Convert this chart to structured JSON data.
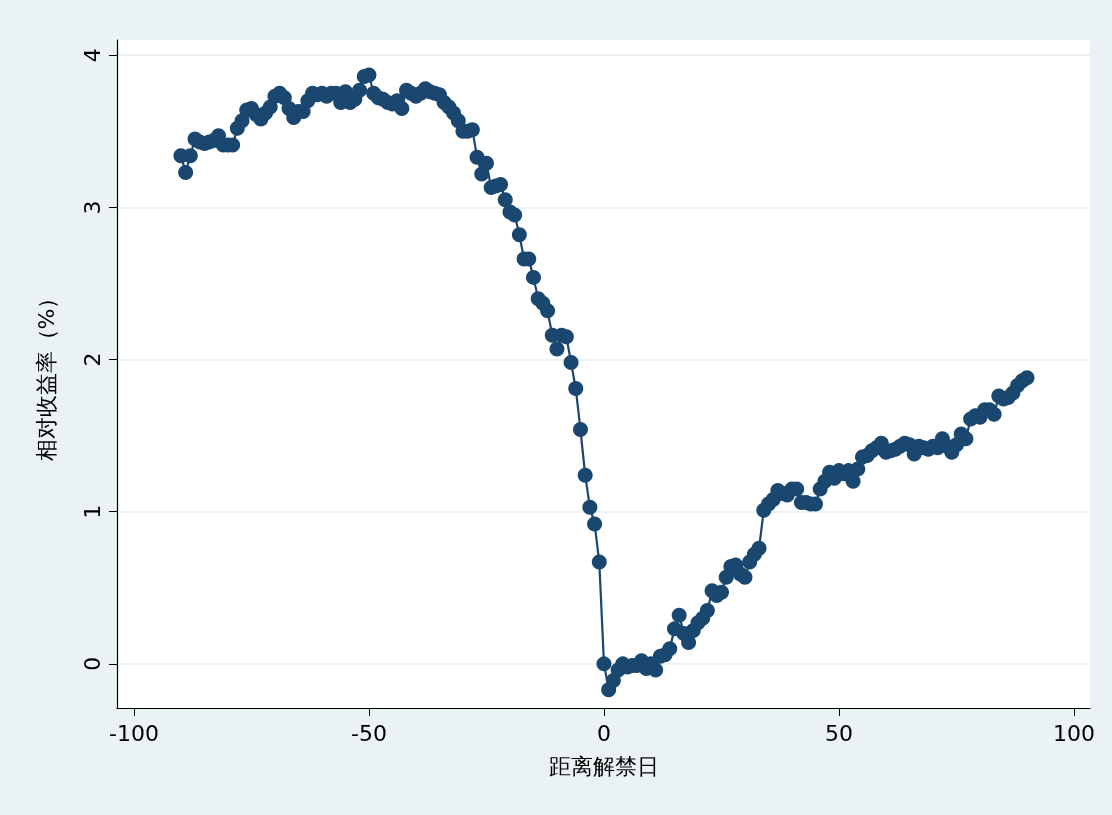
{
  "chart_data": {
    "type": "line",
    "xlabel": "距离解禁日",
    "ylabel": "相对收益率（%）",
    "marker": "circle",
    "grid": "y",
    "xlim": [
      -103.6,
      103.4
    ],
    "xticks": [
      -100,
      -50,
      0,
      50,
      100
    ],
    "ylim": [
      -0.29,
      4.1
    ],
    "yticks": [
      0,
      1,
      2,
      3,
      4
    ],
    "x": [
      -90,
      -89,
      -88,
      -87,
      -86,
      -85,
      -84,
      -83,
      -82,
      -81,
      -80,
      -79,
      -78,
      -77,
      -76,
      -75,
      -74,
      -73,
      -72,
      -71,
      -70,
      -69,
      -68,
      -67,
      -66,
      -65,
      -64,
      -63,
      -62,
      -61,
      -60,
      -59,
      -58,
      -57,
      -56,
      -55,
      -54,
      -53,
      -52,
      -51,
      -50,
      -49,
      -48,
      -47,
      -46,
      -45,
      -44,
      -43,
      -42,
      -41,
      -40,
      -39,
      -38,
      -37,
      -36,
      -35,
      -34,
      -33,
      -32,
      -31,
      -30,
      -29,
      -28,
      -27,
      -26,
      -25,
      -24,
      -23,
      -22,
      -21,
      -20,
      -19,
      -18,
      -17,
      -16,
      -15,
      -14,
      -13,
      -12,
      -11,
      -10,
      -9,
      -8,
      -7,
      -6,
      -5,
      -4,
      -3,
      -2,
      -1,
      0,
      1,
      2,
      3,
      4,
      5,
      6,
      7,
      8,
      9,
      10,
      11,
      12,
      13,
      14,
      15,
      16,
      17,
      18,
      19,
      20,
      21,
      22,
      23,
      24,
      25,
      26,
      27,
      28,
      29,
      30,
      31,
      32,
      33,
      34,
      35,
      36,
      37,
      38,
      39,
      40,
      41,
      42,
      43,
      44,
      45,
      46,
      47,
      48,
      49,
      50,
      51,
      52,
      53,
      54,
      55,
      56,
      57,
      58,
      59,
      60,
      61,
      62,
      63,
      64,
      65,
      66,
      67,
      68,
      69,
      70,
      71,
      72,
      73,
      74,
      75,
      76,
      77,
      78,
      79,
      80,
      81,
      82,
      83,
      84,
      85,
      86,
      87,
      88,
      89,
      90
    ],
    "series": [
      {
        "color": "#1a476f",
        "values": [
          3.34,
          3.23,
          3.34,
          3.45,
          3.43,
          3.42,
          3.43,
          3.44,
          3.47,
          3.41,
          3.41,
          3.41,
          3.52,
          3.57,
          3.64,
          3.65,
          3.61,
          3.58,
          3.62,
          3.66,
          3.73,
          3.75,
          3.72,
          3.65,
          3.59,
          3.63,
          3.63,
          3.7,
          3.75,
          3.74,
          3.75,
          3.73,
          3.75,
          3.75,
          3.69,
          3.76,
          3.69,
          3.71,
          3.77,
          3.86,
          3.87,
          3.75,
          3.72,
          3.71,
          3.69,
          3.68,
          3.7,
          3.65,
          3.77,
          3.75,
          3.73,
          3.75,
          3.78,
          3.76,
          3.75,
          3.74,
          3.69,
          3.66,
          3.62,
          3.57,
          3.5,
          3.5,
          3.51,
          3.33,
          3.22,
          3.29,
          3.13,
          3.14,
          3.15,
          3.05,
          2.97,
          2.95,
          2.82,
          2.66,
          2.66,
          2.54,
          2.4,
          2.37,
          2.32,
          2.16,
          2.07,
          2.16,
          2.15,
          1.98,
          1.81,
          1.54,
          1.24,
          1.03,
          0.92,
          0.67,
          0.0,
          -0.17,
          -0.11,
          -0.04,
          0.0,
          -0.02,
          -0.01,
          -0.01,
          0.02,
          -0.03,
          0.0,
          -0.04,
          0.05,
          0.06,
          0.1,
          0.23,
          0.32,
          0.2,
          0.14,
          0.22,
          0.27,
          0.3,
          0.35,
          0.48,
          0.45,
          0.47,
          0.57,
          0.64,
          0.65,
          0.59,
          0.57,
          0.67,
          0.72,
          0.76,
          1.01,
          1.05,
          1.08,
          1.14,
          1.12,
          1.11,
          1.15,
          1.15,
          1.06,
          1.06,
          1.05,
          1.05,
          1.15,
          1.2,
          1.26,
          1.22,
          1.27,
          1.25,
          1.27,
          1.2,
          1.28,
          1.36,
          1.37,
          1.4,
          1.42,
          1.45,
          1.39,
          1.4,
          1.41,
          1.43,
          1.45,
          1.44,
          1.38,
          1.43,
          1.42,
          1.41,
          1.43,
          1.42,
          1.48,
          1.43,
          1.39,
          1.44,
          1.51,
          1.48,
          1.61,
          1.63,
          1.62,
          1.67,
          1.67,
          1.64,
          1.76,
          1.74,
          1.75,
          1.78,
          1.83,
          1.86,
          1.88
        ]
      }
    ]
  }
}
